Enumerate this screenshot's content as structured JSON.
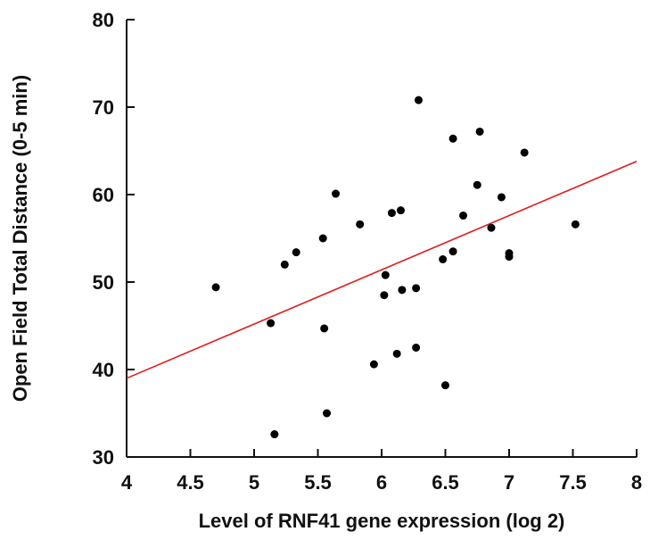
{
  "chart_data": {
    "type": "scatter",
    "title": "",
    "xlabel": "Level of RNF41 gene expression (log 2)",
    "ylabel": "Open Field Total Distance  (0-5 min)",
    "xlim": [
      4,
      8
    ],
    "ylim": [
      30,
      80
    ],
    "xticks": [
      "4",
      "4.5",
      "5",
      "5.5",
      "6",
      "6.5",
      "7",
      "7.5",
      "8"
    ],
    "yticks": [
      "30",
      "40",
      "50",
      "60",
      "70",
      "80"
    ],
    "grid": false,
    "colors": {
      "points": "#000000",
      "trend_line": "#e01b1b"
    },
    "points": [
      {
        "x": 4.7,
        "y": 49.4
      },
      {
        "x": 5.13,
        "y": 45.3
      },
      {
        "x": 5.16,
        "y": 32.6
      },
      {
        "x": 5.24,
        "y": 52.0
      },
      {
        "x": 5.33,
        "y": 53.4
      },
      {
        "x": 5.54,
        "y": 55.0
      },
      {
        "x": 5.55,
        "y": 44.7
      },
      {
        "x": 5.57,
        "y": 35.0
      },
      {
        "x": 5.64,
        "y": 60.1
      },
      {
        "x": 5.83,
        "y": 56.6
      },
      {
        "x": 5.94,
        "y": 40.6
      },
      {
        "x": 6.02,
        "y": 48.5
      },
      {
        "x": 6.03,
        "y": 50.8
      },
      {
        "x": 6.08,
        "y": 57.9
      },
      {
        "x": 6.12,
        "y": 41.8
      },
      {
        "x": 6.15,
        "y": 58.2
      },
      {
        "x": 6.16,
        "y": 49.1
      },
      {
        "x": 6.27,
        "y": 42.5
      },
      {
        "x": 6.27,
        "y": 49.3
      },
      {
        "x": 6.29,
        "y": 70.8
      },
      {
        "x": 6.48,
        "y": 52.6
      },
      {
        "x": 6.5,
        "y": 38.2
      },
      {
        "x": 6.56,
        "y": 53.5
      },
      {
        "x": 6.56,
        "y": 66.4
      },
      {
        "x": 6.64,
        "y": 57.6
      },
      {
        "x": 6.75,
        "y": 61.1
      },
      {
        "x": 6.77,
        "y": 67.2
      },
      {
        "x": 6.86,
        "y": 56.2
      },
      {
        "x": 6.94,
        "y": 59.7
      },
      {
        "x": 7.0,
        "y": 52.9
      },
      {
        "x": 7.0,
        "y": 53.3
      },
      {
        "x": 7.12,
        "y": 64.8
      },
      {
        "x": 7.52,
        "y": 56.6
      }
    ],
    "trend_line": {
      "x": [
        4,
        8
      ],
      "y": [
        39.0,
        63.8
      ]
    }
  }
}
